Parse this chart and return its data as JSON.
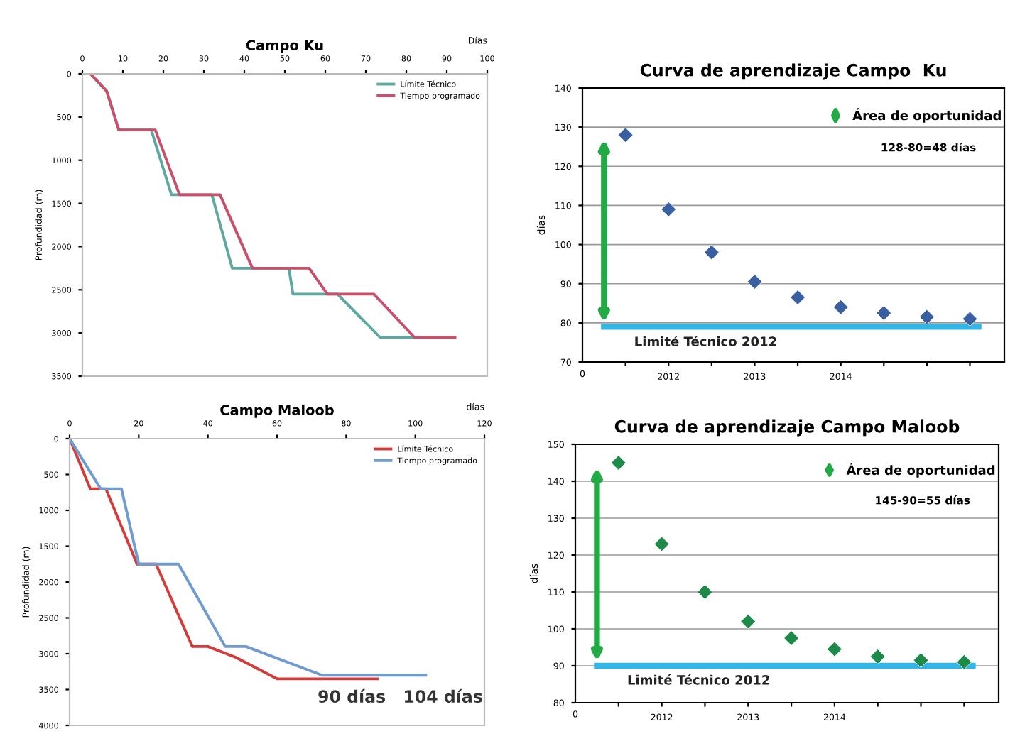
{
  "chart_data": [
    {
      "type": "line",
      "title": "Campo Ku",
      "xlabel": "Días",
      "ylabel": "Profundidad (m)",
      "xlim": [
        0,
        100
      ],
      "xticks": [
        0,
        10,
        20,
        30,
        40,
        50,
        60,
        70,
        80,
        90,
        100
      ],
      "ylim": [
        3500,
        0
      ],
      "yticks": [
        0,
        500,
        1000,
        1500,
        2000,
        2500,
        3000,
        3500
      ],
      "grid": false,
      "legend": "top right",
      "marker": "none",
      "line_style": "solid",
      "series": [
        {
          "name": "Límite Técnico",
          "color": "#5fa8a0",
          "x": [
            2,
            6,
            9,
            17,
            22,
            32,
            37,
            51,
            52,
            63,
            73.5,
            92
          ],
          "values": [
            0,
            200,
            650,
            650,
            1400,
            1400,
            2250,
            2250,
            2550,
            2550,
            3050,
            3050
          ]
        },
        {
          "name": "Tiempo programado",
          "color": "#c8506a",
          "x": [
            2,
            6,
            9,
            18,
            24,
            34,
            42,
            56,
            60.5,
            72,
            82,
            92
          ],
          "values": [
            0,
            200,
            650,
            650,
            1400,
            1400,
            2250,
            2250,
            2550,
            2550,
            3050,
            3050
          ]
        }
      ]
    },
    {
      "type": "scatter",
      "title": "Curva de aprendizaje Campo  Ku",
      "ylabel": "días",
      "categories": [
        null,
        "2012",
        null,
        "2013",
        null,
        "2014",
        null,
        null,
        null
      ],
      "ylim": [
        70,
        140
      ],
      "yticks": [
        70,
        80,
        90,
        100,
        110,
        120,
        130,
        140
      ],
      "grid": "y",
      "marker": "diamond",
      "series": [
        {
          "color": "#3a5fa0",
          "values": [
            128,
            109,
            98,
            90.5,
            86.5,
            84,
            82.5,
            81.5,
            81
          ]
        }
      ],
      "ref_lines": [
        {
          "axis": "y",
          "value": 79,
          "label": "Limité Técnico 2012",
          "color": "#33b5e5"
        }
      ],
      "annotations": [
        "0",
        "Área de oportunidad",
        "128-80=48 días"
      ]
    },
    {
      "type": "line",
      "title": "Campo Maloob",
      "xlabel": "días",
      "ylabel": "Profundidad (m)",
      "xlim": [
        0,
        120
      ],
      "xticks": [
        0,
        20,
        40,
        60,
        80,
        100,
        120
      ],
      "ylim": [
        4000,
        0
      ],
      "yticks": [
        0,
        500,
        1000,
        1500,
        2000,
        2500,
        3000,
        3500,
        4000
      ],
      "grid": false,
      "legend": "top right",
      "marker": "none",
      "line_style": "solid",
      "series": [
        {
          "name": "Límite Técnico",
          "color": "#d43c3c",
          "x": [
            0,
            6,
            10.5,
            19.5,
            25,
            35.5,
            40,
            48,
            60,
            89
          ],
          "values": [
            0,
            700,
            700,
            1750,
            1750,
            2900,
            2900,
            3050,
            3350,
            3350
          ]
        },
        {
          "name": "Tiempo programado",
          "color": "#6f9bd0",
          "x": [
            0,
            9,
            15,
            20,
            31.5,
            45,
            51,
            73,
            103
          ],
          "values": [
            0,
            700,
            700,
            1750,
            1750,
            2900,
            2900,
            3300,
            3300
          ]
        }
      ],
      "annotations": [
        "90 días",
        "104 días"
      ]
    },
    {
      "type": "scatter",
      "title": "Curva de aprendizaje Campo Maloob",
      "ylabel": "días",
      "categories": [
        null,
        "2012",
        null,
        "2013",
        null,
        "2014",
        null,
        null,
        null
      ],
      "ylim": [
        80,
        150
      ],
      "yticks": [
        80,
        90,
        100,
        110,
        120,
        130,
        140,
        150
      ],
      "grid": "y",
      "marker": "diamond",
      "series": [
        {
          "color": "#1e8a4a",
          "values": [
            145,
            123,
            110,
            102,
            97.5,
            94.5,
            92.5,
            91.5,
            91
          ]
        }
      ],
      "ref_lines": [
        {
          "axis": "y",
          "value": 90,
          "label": "Limité Técnico 2012",
          "color": "#33b5e5"
        }
      ],
      "annotations": [
        "0",
        "Área de oportunidad",
        "145-90=55 días"
      ]
    }
  ]
}
